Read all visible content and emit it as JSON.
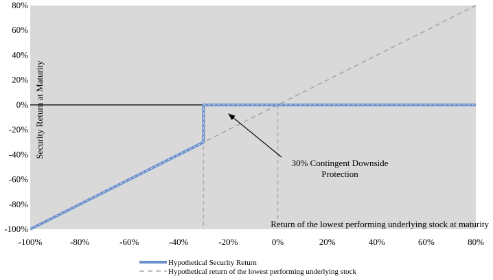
{
  "chart_data": {
    "type": "line",
    "xlabel": "Return of the lowest performing underlying stock at maturity",
    "ylabel": "Security Return at Maturity",
    "xlim": [
      -100,
      80
    ],
    "ylim": [
      -100,
      80
    ],
    "x_ticks": [
      "-100%",
      "-80%",
      "-60%",
      "-40%",
      "-20%",
      "0%",
      "20%",
      "40%",
      "60%",
      "80%"
    ],
    "y_ticks": [
      "80%",
      "60%",
      "40%",
      "20%",
      "0%",
      "-20%",
      "-40%",
      "-60%",
      "-80%",
      "-100%"
    ],
    "x_tick_values": [
      -100,
      -80,
      -60,
      -40,
      -20,
      0,
      20,
      40,
      60,
      80
    ],
    "y_tick_values": [
      80,
      60,
      40,
      20,
      0,
      -20,
      -40,
      -60,
      -80,
      -100
    ],
    "grid": false,
    "plot_background": "#d9d9d9",
    "series": [
      {
        "name": "Hypothetical Security Return",
        "style": "solid",
        "color": "#6b8fcb",
        "points": [
          [
            -100,
            -100
          ],
          [
            -30,
            -30
          ],
          [
            -30,
            0
          ],
          [
            80,
            0
          ]
        ]
      },
      {
        "name": "Hypothetical return of the lowest performing underlying stock",
        "style": "dashed",
        "color": "#a6a6a6",
        "points": [
          [
            -100,
            -100
          ],
          [
            80,
            80
          ]
        ]
      }
    ],
    "reference_lines": [
      {
        "orientation": "horizontal",
        "value": 0,
        "color": "#000000"
      },
      {
        "orientation": "vertical",
        "value": -30,
        "color": "#b0b0b0",
        "style": "dashed"
      },
      {
        "orientation": "vertical",
        "value": 0,
        "color": "#b0b0b0",
        "style": "dashed"
      }
    ],
    "annotation": {
      "lines": [
        "30% Contingent Downside",
        "Protection"
      ],
      "arrow_target": [
        -20,
        -7
      ]
    },
    "legend": {
      "placement": "bottom-center"
    }
  }
}
